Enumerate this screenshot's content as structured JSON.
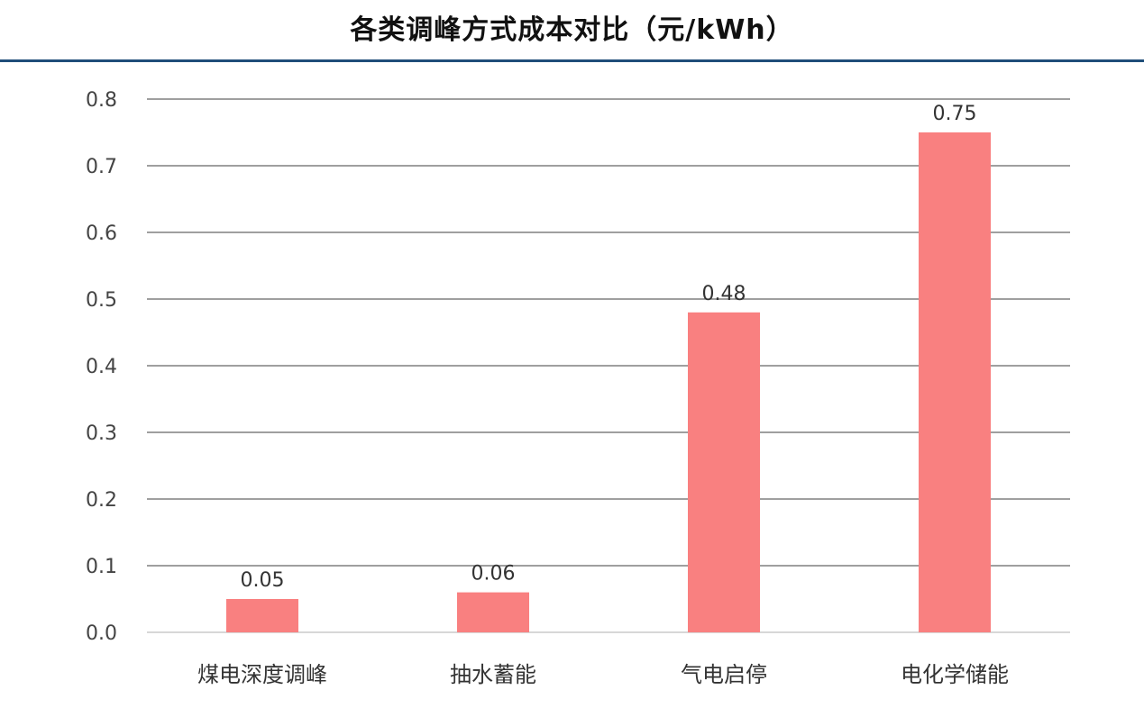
{
  "chart_data": {
    "type": "bar",
    "title": "各类调峰方式成本对比（元/kWh）",
    "categories": [
      "煤电深度调峰",
      "抽水蓄能",
      "气电启停",
      "电化学储能"
    ],
    "values": [
      0.05,
      0.06,
      0.48,
      0.75
    ],
    "data_labels": [
      "0.05",
      "0.06",
      "0.48",
      "0.75"
    ],
    "ylim": [
      0,
      0.8
    ],
    "yticks": [
      0.0,
      0.1,
      0.2,
      0.3,
      0.4,
      0.5,
      0.6,
      0.7,
      0.8
    ],
    "ytick_labels": [
      "0.0",
      "0.1",
      "0.2",
      "0.3",
      "0.4",
      "0.5",
      "0.6",
      "0.7",
      "0.8"
    ],
    "grid": true,
    "bar_color": "#f98080",
    "grid_color": "#666666"
  }
}
